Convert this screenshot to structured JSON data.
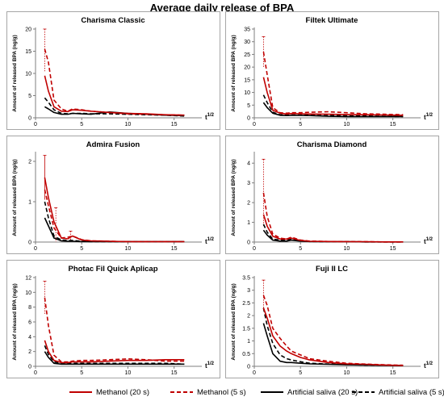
{
  "title": "Average daily release of BPA",
  "legend": [
    {
      "label": "Methanol (20 s)",
      "color": "#c00000",
      "dash": "solid"
    },
    {
      "label": "Methanol (5 s)",
      "color": "#c00000",
      "dash": "dashed"
    },
    {
      "label": "Artificial saliva (20 s)",
      "color": "#000000",
      "dash": "solid"
    },
    {
      "label": "Artificial saliva (5 s)",
      "color": "#000000",
      "dash": "dashed"
    }
  ],
  "chart_data": [
    {
      "type": "line",
      "title": "Charisma Classic",
      "ylabel": "Amount of released BPA (ng/g)",
      "xlabel": "t1/2",
      "xlim": [
        0,
        18
      ],
      "ylim": [
        0,
        20
      ],
      "xticks": [
        0,
        5,
        10,
        15
      ],
      "yticks": [
        0,
        5,
        10,
        15,
        20
      ],
      "grid": false,
      "series": [
        {
          "name": "Methanol (20 s)",
          "x": [
            1,
            1.4,
            2,
            2.8,
            3.5,
            4,
            5,
            6,
            8,
            10,
            12,
            14,
            16.1
          ],
          "y": [
            9.5,
            6,
            2.5,
            1.5,
            1.4,
            1.8,
            1.7,
            1.5,
            1.2,
            1,
            0.9,
            0.7,
            0.6
          ]
        },
        {
          "name": "Methanol (5 s)",
          "x": [
            1,
            1.4,
            2,
            2.8,
            3.5,
            4,
            5,
            6,
            8,
            10,
            12,
            14,
            16.1
          ],
          "y": [
            15.5,
            12.5,
            4,
            2,
            1.5,
            2,
            1.8,
            1.5,
            1.2,
            0.9,
            0.8,
            0.7,
            0.6
          ]
        },
        {
          "name": "Artificial saliva (20 s)",
          "x": [
            1,
            1.4,
            2,
            2.8,
            3.5,
            4,
            5,
            6,
            8,
            10,
            12,
            14,
            16.1
          ],
          "y": [
            2.5,
            2,
            1.2,
            0.8,
            0.8,
            1,
            0.9,
            0.8,
            1.3,
            1,
            0.8,
            0.6,
            0.5
          ]
        },
        {
          "name": "Artificial saliva (5 s)",
          "x": [
            1,
            1.4,
            2,
            2.8,
            3.5,
            4,
            5,
            6,
            8,
            10,
            12,
            14,
            16.1
          ],
          "y": [
            4.5,
            3.5,
            1.8,
            1,
            0.9,
            1,
            1,
            0.9,
            0.9,
            0.8,
            0.7,
            0.6,
            0.4
          ]
        }
      ],
      "error_bars": [
        {
          "series": "Methanol (5 s)",
          "x": 1,
          "y": 15.5,
          "err": 5
        }
      ]
    },
    {
      "type": "line",
      "title": "Filtek Ultimate",
      "ylabel": "Amount of released BPA (ng/g)",
      "xlabel": "t1/2",
      "xlim": [
        0,
        18
      ],
      "ylim": [
        0,
        35
      ],
      "xticks": [
        0,
        5,
        10,
        15
      ],
      "yticks": [
        0,
        5,
        10,
        15,
        20,
        25,
        30,
        35
      ],
      "grid": false,
      "series": [
        {
          "name": "Methanol (20 s)",
          "x": [
            1,
            1.4,
            2,
            2.8,
            3.5,
            4,
            5,
            6,
            8,
            10,
            12,
            14,
            16.1
          ],
          "y": [
            16,
            10,
            3,
            1.8,
            1.5,
            1.7,
            1.6,
            1.5,
            1.4,
            1.3,
            1.2,
            1.1,
            1
          ]
        },
        {
          "name": "Methanol (5 s)",
          "x": [
            1,
            1.4,
            2,
            2.8,
            3.5,
            4,
            5,
            6,
            8,
            10,
            12,
            14,
            16.1
          ],
          "y": [
            26,
            17,
            4,
            2,
            1.8,
            2,
            2,
            2.2,
            2.4,
            2,
            1.6,
            1.4,
            1.2
          ]
        },
        {
          "name": "Artificial saliva (20 s)",
          "x": [
            1,
            1.4,
            2,
            2.8,
            3.5,
            4,
            5,
            6,
            8,
            10,
            12,
            14,
            16.1
          ],
          "y": [
            6,
            4,
            1.8,
            1,
            0.9,
            1,
            1,
            0.9,
            0.6,
            0.5,
            0.5,
            0.5,
            0.5
          ]
        },
        {
          "name": "Artificial saliva (5 s)",
          "x": [
            1,
            1.4,
            2,
            2.8,
            3.5,
            4,
            5,
            6,
            8,
            10,
            12,
            14,
            16.1
          ],
          "y": [
            9,
            6,
            2.2,
            1.2,
            1,
            1.1,
            1.1,
            1,
            0.9,
            0.8,
            0.7,
            0.6,
            0.5
          ]
        }
      ],
      "error_bars": [
        {
          "series": "Methanol (5 s)",
          "x": 1,
          "y": 26,
          "err": 6
        }
      ]
    },
    {
      "type": "line",
      "title": "Admira Fusion",
      "ylabel": "Amount of released BPA (ng/g)",
      "xlabel": "t1/2",
      "xlim": [
        0,
        18
      ],
      "ylim": [
        0,
        2.2
      ],
      "xticks": [
        0,
        5,
        10,
        15
      ],
      "yticks": [
        0,
        1,
        2
      ],
      "grid": false,
      "series": [
        {
          "name": "Methanol (20 s)",
          "x": [
            1,
            1.4,
            2,
            2.8,
            3.5,
            4,
            5,
            6,
            8,
            10,
            12,
            14,
            16.1
          ],
          "y": [
            1.6,
            1.1,
            0.5,
            0.1,
            0.08,
            0.15,
            0.05,
            0.03,
            0.02,
            0.01,
            0.01,
            0.01,
            0.01
          ]
        },
        {
          "name": "Methanol (5 s)",
          "x": [
            1,
            1.4,
            2,
            2.8,
            3.5,
            4,
            5,
            6,
            8,
            10,
            12,
            14,
            16.1
          ],
          "y": [
            1.3,
            0.9,
            0.35,
            0.1,
            0.12,
            0.15,
            0.06,
            0.03,
            0.02,
            0.01,
            0.01,
            0.01,
            0.01
          ]
        },
        {
          "name": "Artificial saliva (20 s)",
          "x": [
            1,
            1.4,
            2,
            2.8,
            3.5,
            4,
            5,
            6,
            8,
            10,
            12,
            14,
            16.1
          ],
          "y": [
            0.6,
            0.4,
            0.1,
            0.03,
            0.02,
            0.02,
            0.01,
            0.01,
            0.01,
            0.01,
            0.01,
            0.01,
            0.01
          ]
        },
        {
          "name": "Artificial saliva (5 s)",
          "x": [
            1,
            1.4,
            2,
            2.8,
            3.5,
            4,
            5,
            6,
            8,
            10,
            12,
            14,
            16.1
          ],
          "y": [
            1,
            0.6,
            0.15,
            0.05,
            0.04,
            0.04,
            0.02,
            0.01,
            0.01,
            0.01,
            0.01,
            0.01,
            0.01
          ]
        }
      ],
      "error_bars": [
        {
          "series": "Methanol (20 s)",
          "x": 1,
          "y": 1.6,
          "err": 0.55
        },
        {
          "series": "Methanol (5 s)",
          "x": 2.2,
          "y": 0.4,
          "err": 0.45
        },
        {
          "series": "Methanol (5 s)",
          "x": 3.8,
          "y": 0.15,
          "err": 0.12
        }
      ]
    },
    {
      "type": "line",
      "title": "Charisma Diamond",
      "ylabel": "Amount of released BPA (ng/g)",
      "xlabel": "t1/2",
      "xlim": [
        0,
        18
      ],
      "ylim": [
        0,
        4.5
      ],
      "xticks": [
        0,
        5,
        10,
        15
      ],
      "yticks": [
        0,
        1,
        2,
        3,
        4
      ],
      "grid": false,
      "series": [
        {
          "name": "Methanol (20 s)",
          "x": [
            1,
            1.4,
            2,
            2.8,
            3.5,
            4,
            5,
            6,
            8,
            10,
            12,
            14,
            16.1
          ],
          "y": [
            1.4,
            0.8,
            0.3,
            0.15,
            0.15,
            0.2,
            0.08,
            0.04,
            0.03,
            0.02,
            0.02,
            0.01,
            0.01
          ]
        },
        {
          "name": "Methanol (5 s)",
          "x": [
            1,
            1.4,
            2,
            2.8,
            3.5,
            4,
            5,
            6,
            8,
            10,
            12,
            14,
            16.1
          ],
          "y": [
            2.5,
            1.3,
            0.4,
            0.2,
            0.15,
            0.25,
            0.1,
            0.05,
            0.03,
            0.02,
            0.02,
            0.01,
            0.01
          ]
        },
        {
          "name": "Artificial saliva (20 s)",
          "x": [
            1,
            1.4,
            2,
            2.8,
            3.5,
            4,
            5,
            6,
            8,
            10,
            12,
            14,
            16.1
          ],
          "y": [
            0.6,
            0.35,
            0.1,
            0.05,
            0.05,
            0.1,
            0.05,
            0.03,
            0.02,
            0.02,
            0.01,
            0.01,
            0.01
          ]
        },
        {
          "name": "Artificial saliva (5 s)",
          "x": [
            1,
            1.4,
            2,
            2.8,
            3.5,
            4,
            5,
            6,
            8,
            10,
            12,
            14,
            16.1
          ],
          "y": [
            0.9,
            0.5,
            0.15,
            0.1,
            0.08,
            0.15,
            0.06,
            0.03,
            0.02,
            0.02,
            0.01,
            0.01,
            0.01
          ]
        }
      ],
      "error_bars": [
        {
          "series": "Methanol (5 s)",
          "x": 1,
          "y": 2.5,
          "err": 1.7
        }
      ]
    },
    {
      "type": "line",
      "title": "Photac Fil Quick Aplicap",
      "ylabel": "Amount of released BPA (ng/g)",
      "xlabel": "t1/2",
      "xlim": [
        0,
        18
      ],
      "ylim": [
        0,
        12
      ],
      "xticks": [
        0,
        5,
        10,
        15
      ],
      "yticks": [
        0,
        2,
        4,
        6,
        8,
        10,
        12
      ],
      "grid": false,
      "series": [
        {
          "name": "Methanol (20 s)",
          "x": [
            1,
            1.4,
            2,
            2.8,
            3.5,
            4,
            5,
            6,
            8,
            10,
            12,
            14,
            16.1
          ],
          "y": [
            3.5,
            2,
            0.8,
            0.5,
            0.5,
            0.6,
            0.6,
            0.6,
            0.7,
            0.8,
            0.8,
            0.9,
            0.9
          ]
        },
        {
          "name": "Methanol (5 s)",
          "x": [
            1,
            1.4,
            2,
            2.8,
            3.5,
            4,
            5,
            6,
            8,
            10,
            12,
            14,
            16.1
          ],
          "y": [
            9.3,
            5.5,
            1.5,
            0.6,
            0.6,
            0.7,
            0.8,
            0.8,
            0.9,
            1,
            0.9,
            0.7,
            0.7
          ]
        },
        {
          "name": "Artificial saliva (20 s)",
          "x": [
            1,
            1.4,
            2,
            2.8,
            3.5,
            4,
            5,
            6,
            8,
            10,
            12,
            14,
            16.1
          ],
          "y": [
            2,
            1.2,
            0.4,
            0.3,
            0.3,
            0.3,
            0.3,
            0.3,
            0.3,
            0.3,
            0.3,
            0.3,
            0.3
          ]
        },
        {
          "name": "Artificial saliva (5 s)",
          "x": [
            1,
            1.4,
            2,
            2.8,
            3.5,
            4,
            5,
            6,
            8,
            10,
            12,
            14,
            16.1
          ],
          "y": [
            2.8,
            1.6,
            0.6,
            0.4,
            0.4,
            0.4,
            0.4,
            0.4,
            0.4,
            0.4,
            0.4,
            0.4,
            0.3
          ]
        }
      ],
      "error_bars": [
        {
          "series": "Methanol (5 s)",
          "x": 1,
          "y": 9.3,
          "err": 2.2
        }
      ]
    },
    {
      "type": "line",
      "title": "Fuji II LC",
      "ylabel": "Amount of released BPA (ng/g)",
      "xlabel": "t1/2",
      "xlim": [
        0,
        18
      ],
      "ylim": [
        0,
        3.5
      ],
      "xticks": [
        0,
        5,
        10,
        15
      ],
      "yticks": [
        0,
        0.5,
        1,
        1.5,
        2,
        2.5,
        3,
        3.5
      ],
      "grid": false,
      "series": [
        {
          "name": "Methanol (20 s)",
          "x": [
            1,
            1.4,
            2,
            2.8,
            3.5,
            4,
            5,
            6,
            8,
            10,
            12,
            14,
            16.1
          ],
          "y": [
            2.3,
            1.9,
            1.2,
            0.8,
            0.6,
            0.5,
            0.35,
            0.25,
            0.15,
            0.1,
            0.08,
            0.05,
            0.03
          ]
        },
        {
          "name": "Methanol (5 s)",
          "x": [
            1,
            1.4,
            2,
            2.8,
            3.5,
            4,
            5,
            6,
            8,
            10,
            12,
            14,
            16.1
          ],
          "y": [
            2.8,
            2.4,
            1.5,
            1.1,
            0.8,
            0.6,
            0.45,
            0.3,
            0.2,
            0.12,
            0.09,
            0.06,
            0.04
          ]
        },
        {
          "name": "Artificial saliva (20 s)",
          "x": [
            1,
            1.4,
            2,
            2.8,
            3.5,
            4,
            5,
            6,
            8,
            10,
            12,
            14,
            16.1
          ],
          "y": [
            1.7,
            1.2,
            0.5,
            0.2,
            0.15,
            0.15,
            0.12,
            0.1,
            0.08,
            0.06,
            0.05,
            0.04,
            0.03
          ]
        },
        {
          "name": "Artificial saliva (5 s)",
          "x": [
            1,
            1.4,
            2,
            2.8,
            3.5,
            4,
            5,
            6,
            8,
            10,
            12,
            14,
            16.1
          ],
          "y": [
            2.3,
            1.6,
            0.9,
            0.45,
            0.3,
            0.25,
            0.18,
            0.12,
            0.09,
            0.07,
            0.05,
            0.04,
            0.03
          ]
        }
      ],
      "error_bars": [
        {
          "series": "Methanol (5 s)",
          "x": 1,
          "y": 2.8,
          "err": 0.6
        }
      ]
    }
  ]
}
